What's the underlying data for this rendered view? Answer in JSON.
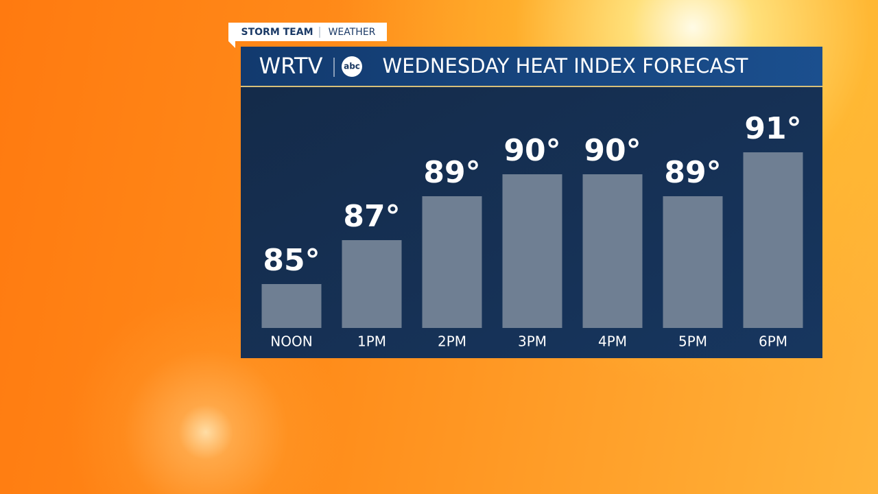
{
  "chart_data": {
    "type": "bar",
    "title": "WEDNESDAY HEAT INDEX FORECAST",
    "branding": {
      "tag": "STORM TEAM",
      "tag_section": "WEATHER",
      "station": "WRTV",
      "network": "abc"
    },
    "categories": [
      "NOON",
      "1PM",
      "2PM",
      "3PM",
      "4PM",
      "5PM",
      "6PM"
    ],
    "values": [
      85,
      87,
      89,
      90,
      90,
      89,
      91
    ],
    "value_labels": [
      "85°",
      "87°",
      "89°",
      "90°",
      "90°",
      "89°",
      "91°"
    ],
    "color": "#6f7f93"
  }
}
